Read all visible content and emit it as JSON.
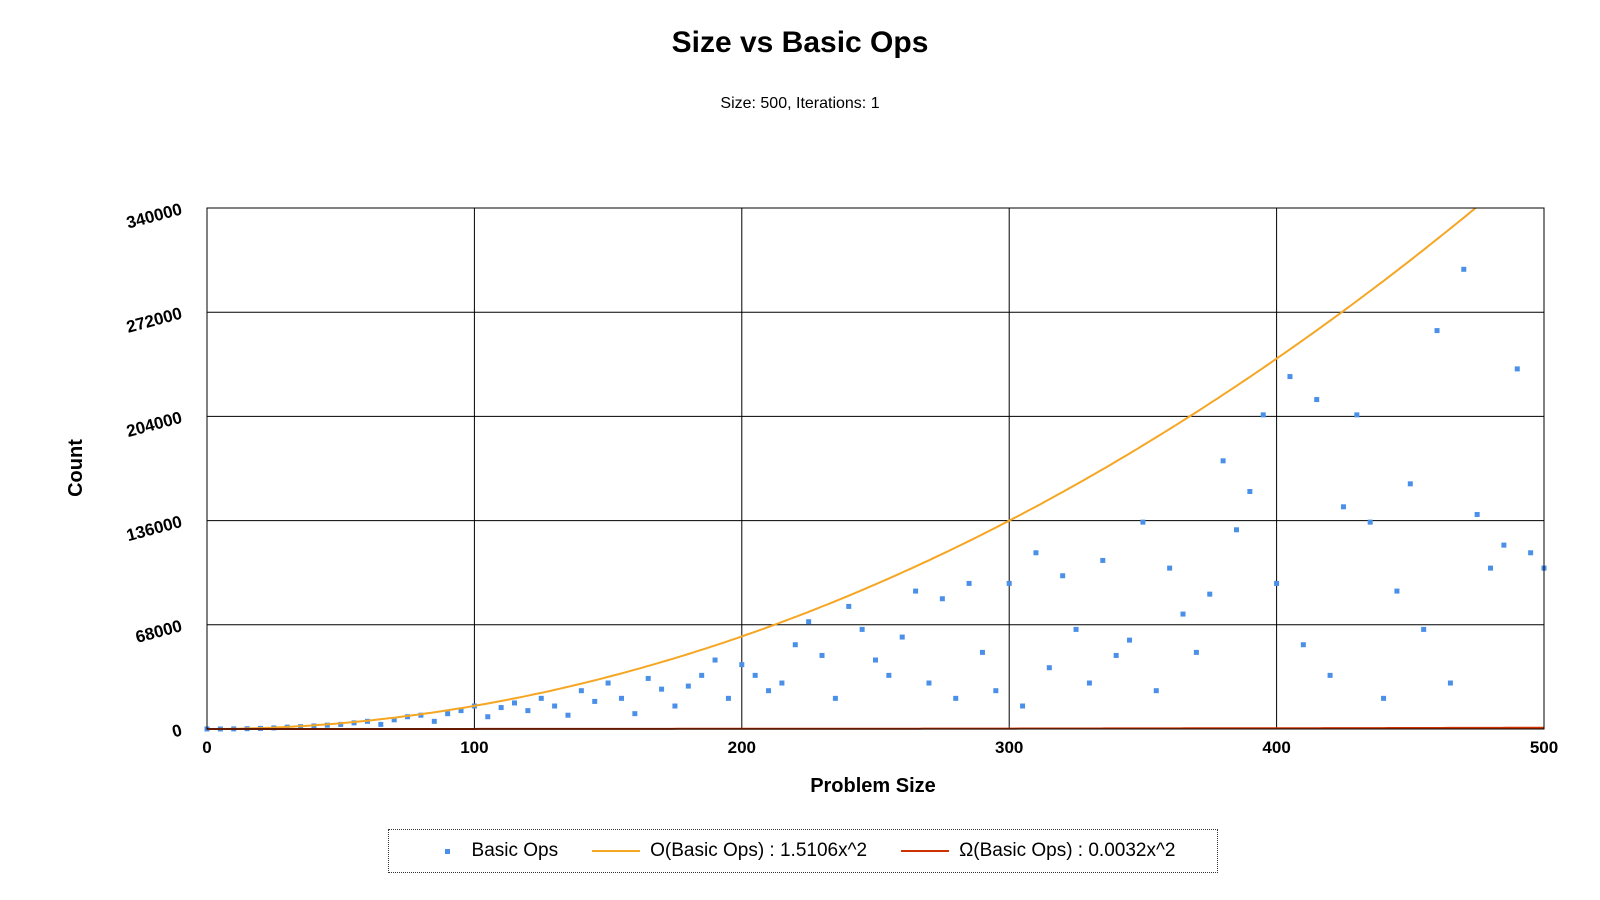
{
  "chart_data": {
    "type": "scatter",
    "title": "Size vs Basic Ops",
    "subtitle": "Size: 500, Iterations: 1",
    "xlabel": "Problem Size",
    "ylabel": "Count",
    "xlim": [
      0,
      500
    ],
    "ylim": [
      0,
      340000
    ],
    "xticks": [
      "0",
      "100",
      "200",
      "300",
      "400",
      "500"
    ],
    "yticks": [
      "0",
      "68000",
      "136000",
      "204000",
      "272000",
      "340000"
    ],
    "grid": true,
    "legend_position": "bottom",
    "series": [
      {
        "name": "Basic Ops",
        "kind": "points",
        "color": "#4a90e8",
        "x": [
          0,
          5,
          10,
          15,
          20,
          25,
          30,
          35,
          40,
          45,
          50,
          55,
          60,
          65,
          70,
          75,
          80,
          85,
          90,
          95,
          100,
          105,
          110,
          115,
          120,
          125,
          130,
          135,
          140,
          145,
          150,
          155,
          160,
          165,
          170,
          175,
          180,
          185,
          190,
          195,
          200,
          205,
          210,
          215,
          220,
          225,
          230,
          235,
          240,
          245,
          250,
          255,
          260,
          265,
          270,
          275,
          280,
          285,
          290,
          295,
          300,
          305,
          310,
          315,
          320,
          325,
          330,
          335,
          340,
          345,
          350,
          355,
          360,
          365,
          370,
          375,
          380,
          385,
          390,
          395,
          400,
          405,
          410,
          415,
          420,
          425,
          430,
          435,
          440,
          445,
          450,
          455,
          460,
          465,
          470,
          475,
          480,
          485,
          490,
          495,
          500
        ],
        "y": [
          0,
          20,
          80,
          200,
          400,
          700,
          1200,
          1500,
          2000,
          2500,
          3000,
          4000,
          5000,
          3000,
          6000,
          8000,
          9000,
          5000,
          10000,
          12000,
          15000,
          8000,
          14000,
          17000,
          12000,
          20000,
          15000,
          9000,
          25000,
          18000,
          30000,
          20000,
          10000,
          33000,
          26000,
          15000,
          28000,
          35000,
          45000,
          20000,
          42000,
          35000,
          25000,
          30000,
          55000,
          70000,
          48000,
          20000,
          80000,
          65000,
          45000,
          35000,
          60000,
          90000,
          30000,
          85000,
          20000,
          95000,
          50000,
          25000,
          95000,
          15000,
          115000,
          40000,
          100000,
          65000,
          30000,
          110000,
          48000,
          58000,
          135000,
          25000,
          105000,
          75000,
          50000,
          88000,
          175000,
          130000,
          155000,
          205000,
          95000,
          230000,
          55000,
          215000,
          35000,
          145000,
          205000,
          135000,
          20000,
          90000,
          160000,
          65000,
          260000,
          30000,
          300000,
          140000,
          105000,
          120000,
          235000,
          115000,
          105000
        ]
      },
      {
        "name": "O(Basic Ops) : 1.5106x^2",
        "kind": "curve",
        "color": "#f5a623",
        "coefficient": 1.5106
      },
      {
        "name": "Ω(Basic Ops) : 0.0032x^2",
        "kind": "curve",
        "color": "#cc3300",
        "coefficient": 0.0032
      }
    ]
  }
}
